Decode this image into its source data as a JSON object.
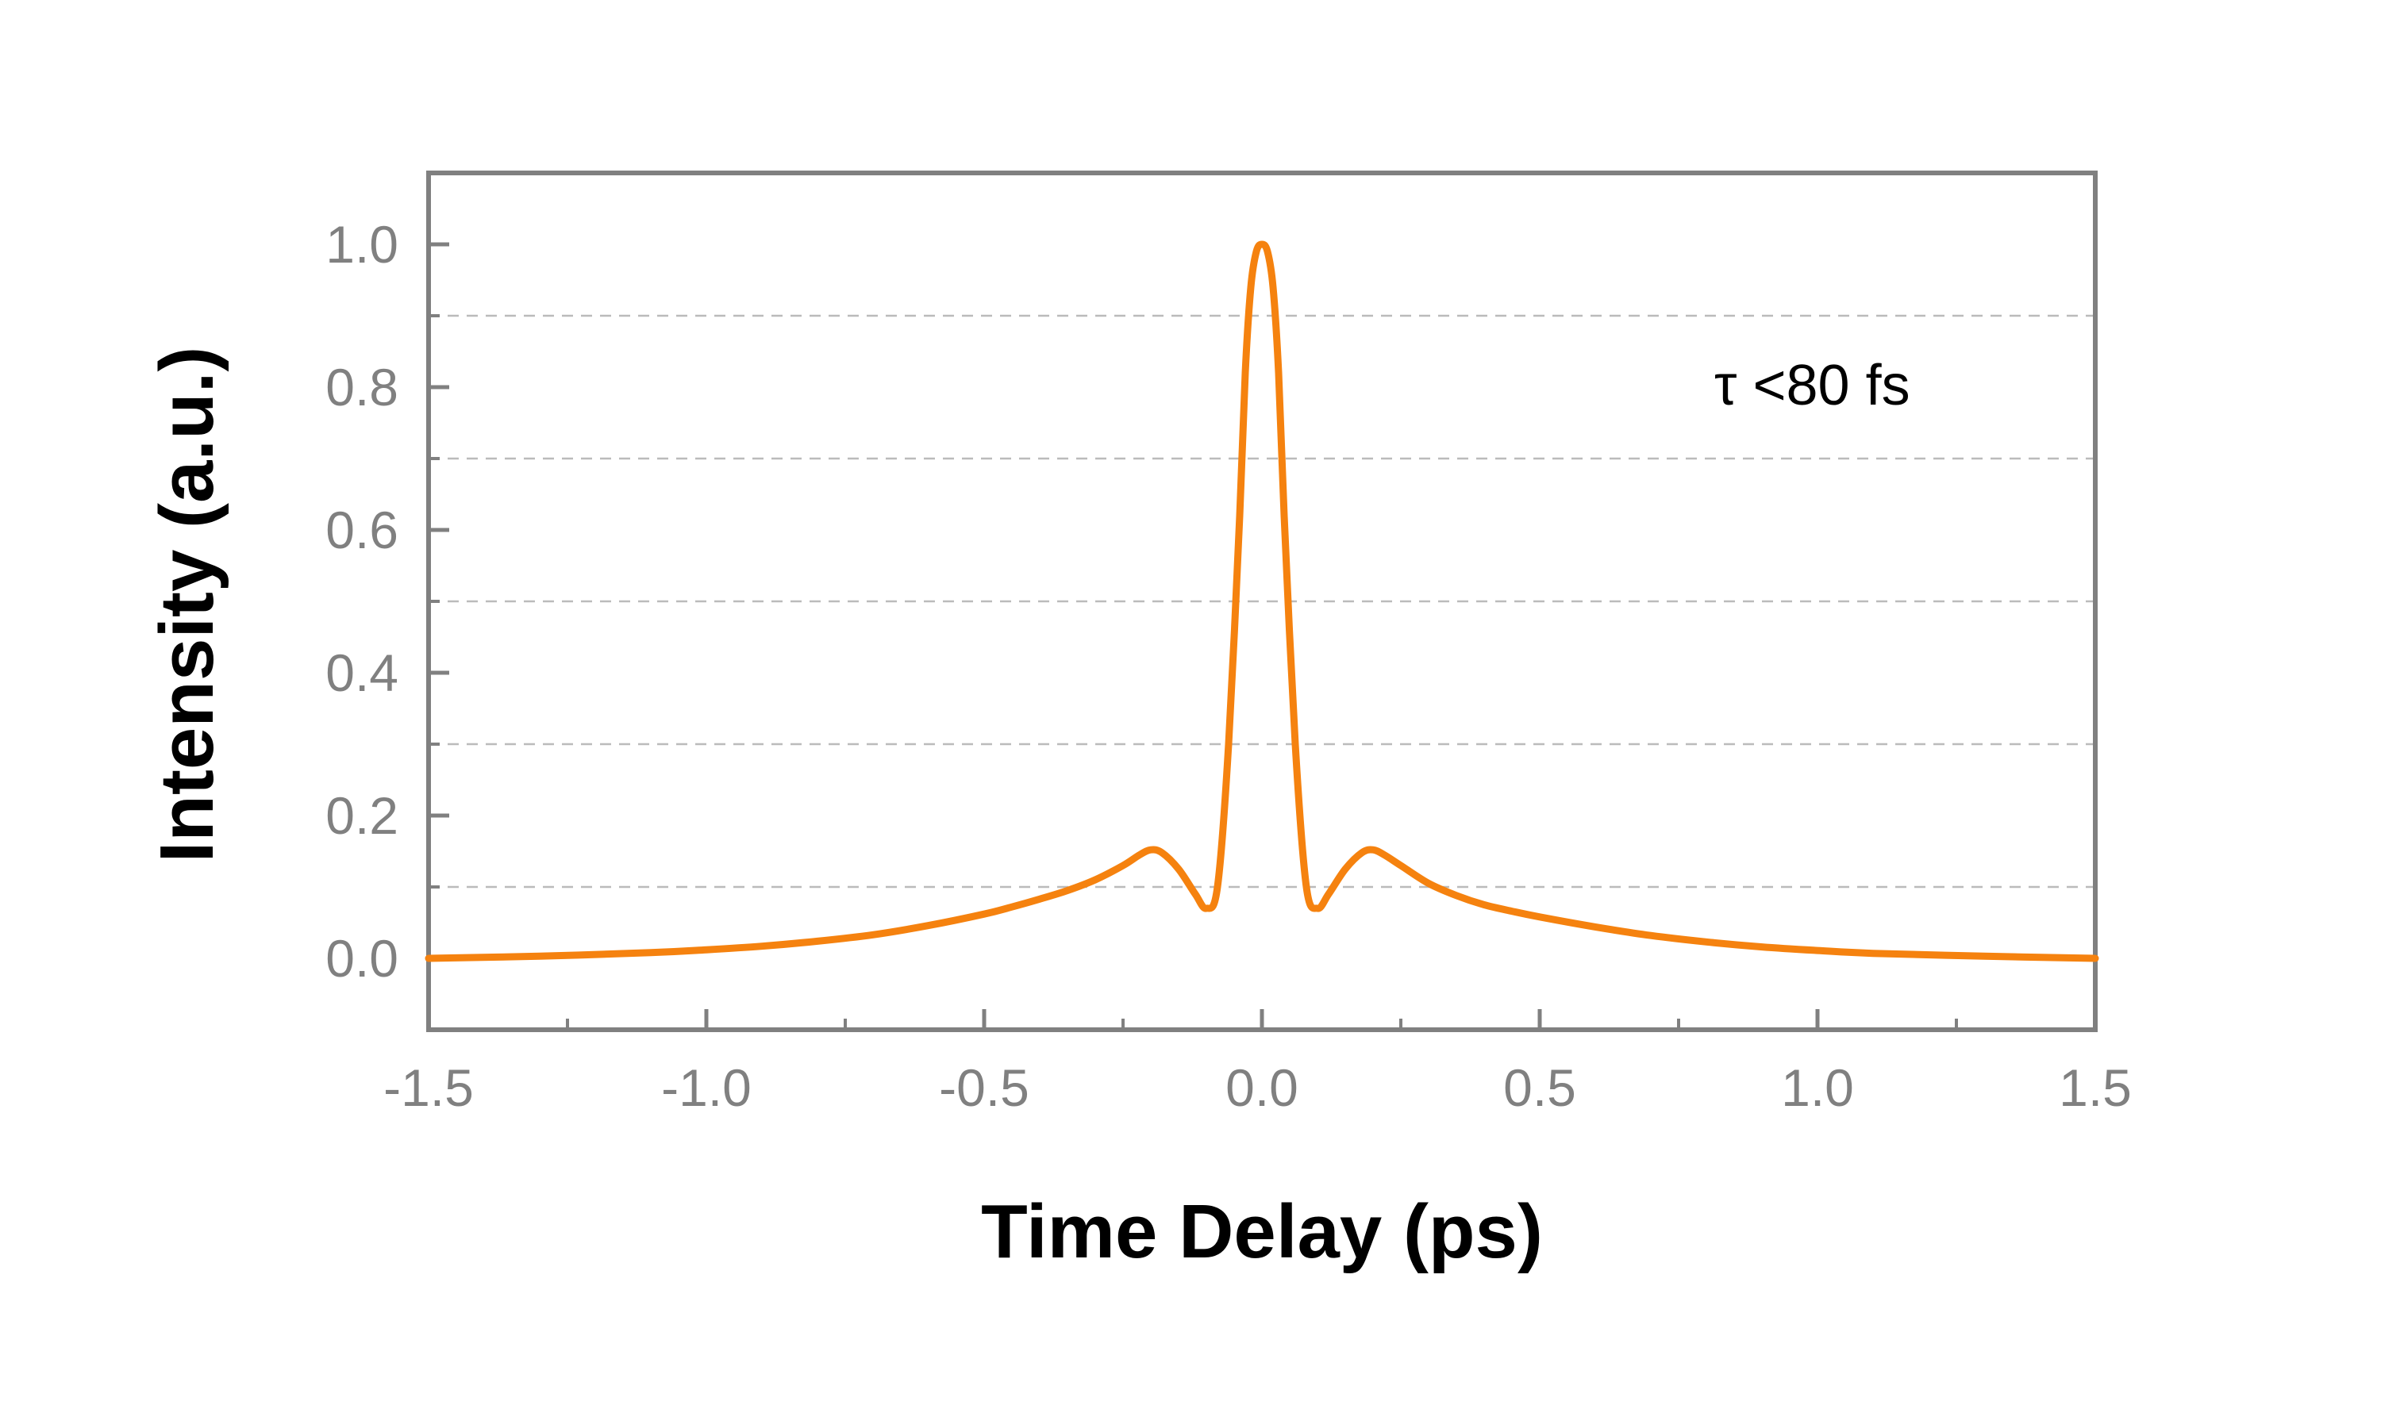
{
  "chart_data": {
    "type": "line",
    "title": "",
    "xlabel": "Time Delay (ps)",
    "ylabel": "Intensity (a.u.)",
    "xlim": [
      -1.5,
      1.5
    ],
    "ylim": [
      -0.1,
      1.1
    ],
    "x_ticks": [
      -1.5,
      -1.0,
      -0.5,
      0.0,
      0.5,
      1.0,
      1.5
    ],
    "x_tick_labels": [
      "-1.5",
      "-1.0",
      "-0.5",
      "0.0",
      "0.5",
      "1.0",
      "1.5"
    ],
    "y_ticks": [
      0.0,
      0.2,
      0.4,
      0.6,
      0.8,
      1.0
    ],
    "y_tick_labels": [
      "0.0",
      "0.2",
      "0.4",
      "0.6",
      "0.8",
      "1.0"
    ],
    "y_minor_ticks": [
      0.1,
      0.3,
      0.5,
      0.7,
      0.9
    ],
    "x_minor_ticks": [
      -1.25,
      -0.75,
      -0.25,
      0.25,
      0.75,
      1.25
    ],
    "grid": "horizontal dashed at 0.1, 0.3, 0.5, 0.7, 0.9",
    "annotation": "τ <80 fs",
    "annotation_position": "top-right",
    "colors": {
      "line": "#F5820F",
      "axis": "#808080",
      "grid": "#BBBBBB"
    },
    "series": [
      {
        "x": [
          -1.5,
          -1.3,
          -1.1,
          -1.0,
          -0.9,
          -0.8,
          -0.7,
          -0.6,
          -0.5,
          -0.45,
          -0.4,
          -0.35,
          -0.3,
          -0.25,
          -0.22,
          -0.2,
          -0.18,
          -0.15,
          -0.12,
          -0.1,
          -0.08,
          -0.06,
          -0.04,
          -0.03,
          -0.02,
          -0.01,
          0.0,
          0.01,
          0.02,
          0.03,
          0.04,
          0.06,
          0.08,
          0.1,
          0.12,
          0.15,
          0.18,
          0.2,
          0.22,
          0.25,
          0.3,
          0.35,
          0.4,
          0.45,
          0.5,
          0.6,
          0.7,
          0.8,
          0.9,
          1.0,
          1.1,
          1.3,
          1.5
        ],
        "y": [
          0.0,
          0.003,
          0.008,
          0.012,
          0.017,
          0.024,
          0.033,
          0.046,
          0.062,
          0.072,
          0.083,
          0.095,
          0.11,
          0.13,
          0.145,
          0.152,
          0.148,
          0.125,
          0.09,
          0.07,
          0.1,
          0.3,
          0.62,
          0.82,
          0.94,
          0.99,
          1.0,
          0.99,
          0.94,
          0.82,
          0.62,
          0.3,
          0.1,
          0.07,
          0.09,
          0.125,
          0.148,
          0.152,
          0.145,
          0.13,
          0.105,
          0.088,
          0.075,
          0.066,
          0.058,
          0.044,
          0.032,
          0.023,
          0.016,
          0.011,
          0.007,
          0.003,
          0.0
        ]
      }
    ]
  }
}
